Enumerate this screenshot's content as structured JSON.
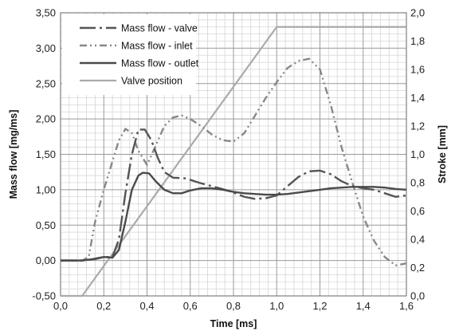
{
  "chart_data": {
    "type": "line",
    "title": "",
    "xlabel": "Time [ms]",
    "ylabel_left": "Mass flow [mg/ms]",
    "ylabel_right": "Stroke [mm]",
    "xlim": [
      0,
      1.6
    ],
    "ylim_left": [
      -0.5,
      3.5
    ],
    "ylim_right": [
      0,
      2.0
    ],
    "x_ticks": [
      "0,0",
      "0,2",
      "0,4",
      "0,6",
      "0,8",
      "1,0",
      "1,2",
      "1,4",
      "1,6"
    ],
    "y_left_ticks": [
      "-0,50",
      "0,00",
      "0,50",
      "1,00",
      "1,50",
      "2,00",
      "2,50",
      "3,00",
      "3,50"
    ],
    "y_right_ticks": [
      "0,0",
      "0,2",
      "0,4",
      "0,6",
      "0,8",
      "1,0",
      "1,2",
      "1,4",
      "1,6",
      "1,8",
      "2,0"
    ],
    "grid": true,
    "legend_position": "top-left",
    "series": [
      {
        "name": "Mass flow - valve",
        "axis": "left",
        "color": "#555555",
        "dash": "long-dash-dot",
        "x": [
          0.0,
          0.1,
          0.16,
          0.2,
          0.24,
          0.27,
          0.3,
          0.33,
          0.36,
          0.39,
          0.42,
          0.45,
          0.48,
          0.52,
          0.58,
          0.64,
          0.7,
          0.76,
          0.8,
          0.85,
          0.9,
          0.95,
          1.0,
          1.05,
          1.1,
          1.15,
          1.2,
          1.25,
          1.3,
          1.35,
          1.4,
          1.45,
          1.5,
          1.55,
          1.6
        ],
        "values": [
          0.0,
          0.0,
          0.02,
          0.05,
          0.05,
          0.3,
          0.95,
          1.5,
          1.85,
          1.85,
          1.7,
          1.45,
          1.25,
          1.17,
          1.16,
          1.1,
          1.05,
          1.0,
          0.96,
          0.9,
          0.87,
          0.88,
          0.92,
          1.05,
          1.18,
          1.26,
          1.27,
          1.22,
          1.12,
          1.05,
          1.02,
          1.0,
          0.95,
          0.9,
          0.92
        ]
      },
      {
        "name": "Mass flow - inlet",
        "axis": "left",
        "color": "#888888",
        "dash": "dash-dot-dot",
        "x": [
          0.0,
          0.1,
          0.13,
          0.16,
          0.2,
          0.24,
          0.27,
          0.3,
          0.33,
          0.36,
          0.4,
          0.44,
          0.48,
          0.52,
          0.56,
          0.6,
          0.65,
          0.7,
          0.75,
          0.8,
          0.85,
          0.9,
          0.95,
          1.0,
          1.05,
          1.1,
          1.15,
          1.2,
          1.25,
          1.3,
          1.35,
          1.4,
          1.45,
          1.5,
          1.55,
          1.6
        ],
        "values": [
          0.0,
          0.0,
          0.05,
          0.55,
          1.0,
          1.4,
          1.7,
          1.86,
          1.8,
          1.55,
          1.35,
          1.62,
          1.9,
          2.02,
          2.05,
          2.0,
          1.9,
          1.78,
          1.7,
          1.68,
          1.8,
          2.05,
          2.3,
          2.52,
          2.72,
          2.82,
          2.85,
          2.7,
          2.2,
          1.6,
          1.1,
          0.62,
          0.28,
          0.05,
          -0.07,
          -0.04
        ]
      },
      {
        "name": "Mass flow - outlet",
        "axis": "left",
        "color": "#4a4a4a",
        "dash": "solid",
        "x": [
          0.0,
          0.1,
          0.15,
          0.2,
          0.24,
          0.27,
          0.3,
          0.33,
          0.36,
          0.38,
          0.41,
          0.44,
          0.48,
          0.52,
          0.56,
          0.6,
          0.65,
          0.7,
          0.75,
          0.8,
          0.85,
          0.9,
          0.95,
          1.0,
          1.05,
          1.1,
          1.15,
          1.2,
          1.25,
          1.3,
          1.35,
          1.4,
          1.45,
          1.5,
          1.55,
          1.6
        ],
        "values": [
          0.0,
          0.0,
          0.02,
          0.05,
          0.04,
          0.15,
          0.55,
          1.0,
          1.2,
          1.24,
          1.23,
          1.12,
          1.0,
          0.95,
          0.95,
          0.99,
          1.02,
          1.02,
          1.0,
          0.97,
          0.95,
          0.94,
          0.93,
          0.93,
          0.94,
          0.96,
          0.98,
          1.0,
          1.02,
          1.03,
          1.04,
          1.04,
          1.04,
          1.03,
          1.01,
          1.0
        ]
      },
      {
        "name": "Valve position",
        "axis": "right",
        "color": "#aaaaaa",
        "dash": "solid",
        "x": [
          0.0,
          0.1,
          1.0,
          1.6
        ],
        "values": [
          0.0,
          0.0,
          1.9,
          1.9
        ]
      }
    ]
  }
}
